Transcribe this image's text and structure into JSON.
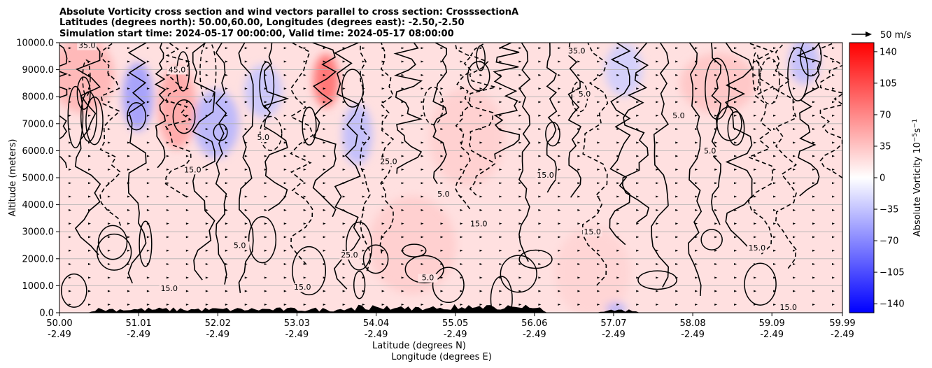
{
  "chart_data": {
    "type": "heatmap",
    "title_lines": [
      "Absolute Vorticity cross section and wind vectors parallel to cross section: CrosssectionA",
      "Latitudes (degrees north): 50.00,60.00, Longitudes (degrees east): -2.50,-2.50",
      "Simulation start time: 2024-05-17 00:00:00, Valid time: 2024-05-17 08:00:00"
    ],
    "xlabel_lines": [
      "Latitude (degrees N)",
      "Longitude (degrees E)"
    ],
    "ylabel": "Altitude (meters)",
    "x_range": [
      50.0,
      59.99
    ],
    "x_ticks": [
      {
        "lat": "50.00",
        "lon": "-2.49",
        "value": 50.0
      },
      {
        "lat": "51.01",
        "lon": "-2.49",
        "value": 51.01
      },
      {
        "lat": "52.02",
        "lon": "-2.49",
        "value": 52.02
      },
      {
        "lat": "53.03",
        "lon": "-2.49",
        "value": 53.03
      },
      {
        "lat": "54.04",
        "lon": "-2.49",
        "value": 54.04
      },
      {
        "lat": "55.05",
        "lon": "-2.49",
        "value": 55.05
      },
      {
        "lat": "56.06",
        "lon": "-2.49",
        "value": 56.06
      },
      {
        "lat": "57.07",
        "lon": "-2.49",
        "value": 57.07
      },
      {
        "lat": "58.08",
        "lon": "-2.49",
        "value": 58.08
      },
      {
        "lat": "59.09",
        "lon": "-2.49",
        "value": 59.09
      },
      {
        "lat": "59.99",
        "lon": "-2.49",
        "value": 59.99
      }
    ],
    "y_range": [
      0,
      10000
    ],
    "y_ticks": [
      "0.0",
      "1000.0",
      "2000.0",
      "3000.0",
      "4000.0",
      "5000.0",
      "6000.0",
      "7000.0",
      "8000.0",
      "9000.0",
      "10000.0"
    ],
    "y_tick_values": [
      0,
      1000,
      2000,
      3000,
      4000,
      5000,
      6000,
      7000,
      8000,
      9000,
      10000
    ],
    "grid": "horizontal",
    "colorbar": {
      "label": "Absolute Vorticity 10",
      "label_exp": "−5",
      "label_unit": "s",
      "label_unit_exp": "−1",
      "range": [
        -150,
        150
      ],
      "ticks": [
        "140",
        "105",
        "70",
        "35",
        "0",
        "−35",
        "−70",
        "−105",
        "−140"
      ],
      "tick_values": [
        140,
        105,
        70,
        35,
        0,
        -35,
        -70,
        -105,
        -140
      ],
      "colormap": "bwr",
      "colors": {
        "low": "#0000ff",
        "mid": "#ffffff",
        "high": "#ff0000"
      }
    },
    "quiver_key": {
      "label": "50 m/s",
      "speed": 50
    },
    "contour_labels": [
      {
        "text": "15.0",
        "lat": 53.1,
        "alt": 850
      },
      {
        "text": "15.0",
        "lat": 55.35,
        "alt": 3200
      },
      {
        "text": "15.0",
        "lat": 56.8,
        "alt": 2900
      },
      {
        "text": "15.0",
        "lat": 58.9,
        "alt": 2300
      },
      {
        "text": "15.0",
        "lat": 51.7,
        "alt": 5200
      },
      {
        "text": "15.0",
        "lat": 56.2,
        "alt": 5000
      },
      {
        "text": "25.0",
        "lat": 54.2,
        "alt": 5500
      },
      {
        "text": "25.0",
        "lat": 53.7,
        "alt": 2050
      },
      {
        "text": "35.0",
        "lat": 50.35,
        "alt": 9800
      },
      {
        "text": "35.0",
        "lat": 56.6,
        "alt": 9600
      },
      {
        "text": "45.0",
        "lat": 51.5,
        "alt": 8900
      },
      {
        "text": "5.0",
        "lat": 52.6,
        "alt": 6400
      },
      {
        "text": "5.0",
        "lat": 54.9,
        "alt": 4300
      },
      {
        "text": "5.0",
        "lat": 56.7,
        "alt": 8000
      },
      {
        "text": "5.0",
        "lat": 57.9,
        "alt": 7200
      },
      {
        "text": "5.0",
        "lat": 58.3,
        "alt": 5900
      },
      {
        "text": "5.0",
        "lat": 52.3,
        "alt": 2400
      },
      {
        "text": "5.0",
        "lat": 54.7,
        "alt": 1200
      },
      {
        "text": "15.0",
        "lat": 59.3,
        "alt": 100
      },
      {
        "text": "15.0",
        "lat": 51.4,
        "alt": 800
      }
    ],
    "field_blobs": [
      {
        "lat": 51.0,
        "alt": 8000,
        "value": -60,
        "sx": 0.12,
        "sy": 900
      },
      {
        "lat": 52.0,
        "alt": 7000,
        "value": -45,
        "sx": 0.18,
        "sy": 900
      },
      {
        "lat": 52.6,
        "alt": 8200,
        "value": -35,
        "sx": 0.15,
        "sy": 700
      },
      {
        "lat": 53.4,
        "alt": 8600,
        "value": 90,
        "sx": 0.1,
        "sy": 700
      },
      {
        "lat": 51.5,
        "alt": 7600,
        "value": 55,
        "sx": 0.15,
        "sy": 1100
      },
      {
        "lat": 50.3,
        "alt": 8800,
        "value": 45,
        "sx": 0.25,
        "sy": 1000
      },
      {
        "lat": 53.8,
        "alt": 6600,
        "value": -40,
        "sx": 0.12,
        "sy": 800
      },
      {
        "lat": 57.2,
        "alt": 9000,
        "value": -30,
        "sx": 0.15,
        "sy": 700
      },
      {
        "lat": 59.5,
        "alt": 9300,
        "value": -40,
        "sx": 0.12,
        "sy": 600
      },
      {
        "lat": 58.4,
        "alt": 8500,
        "value": 35,
        "sx": 0.3,
        "sy": 800
      },
      {
        "lat": 54.5,
        "alt": 2500,
        "value": 30,
        "sx": 0.35,
        "sy": 1300
      },
      {
        "lat": 56.8,
        "alt": 1500,
        "value": 25,
        "sx": 0.3,
        "sy": 1200
      },
      {
        "lat": 55.2,
        "alt": 6500,
        "value": 28,
        "sx": 0.3,
        "sy": 1300
      },
      {
        "lat": 57.1,
        "alt": 150,
        "value": -50,
        "sx": 0.08,
        "sy": 150
      }
    ],
    "field_background": 18
  }
}
